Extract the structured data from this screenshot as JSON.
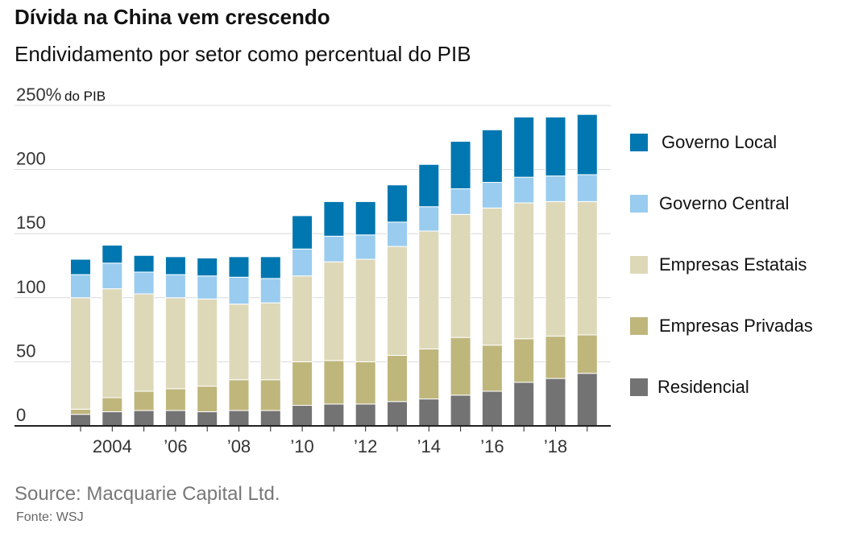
{
  "header": {
    "title": "Dívida na China vem crescendo",
    "subtitle": "Endividamento por setor como percentual do PIB"
  },
  "footer": {
    "source": "Source: Macquarie Capital Ltd.",
    "credit": "Fonte: WSJ"
  },
  "colors": {
    "governo_local": "#0077b0",
    "governo_central": "#99ccef",
    "empresas_estatais": "#ddd8b8",
    "empresas_privadas": "#bfb67c",
    "residencial": "#737373",
    "grid": "#d9d9d9",
    "axis": "#222222"
  },
  "chart_data": {
    "type": "bar",
    "stacked": true,
    "title": "Dívida na China vem crescendo",
    "subtitle": "Endividamento por setor como percentual do PIB",
    "y_unit_label": "do PIB",
    "ylim": [
      0,
      250
    ],
    "y_ticks": [
      "250%",
      "200",
      "150",
      "100",
      "50",
      "0"
    ],
    "x_tick_labels": [
      "2004",
      "’06",
      "’08",
      "’10",
      "’12",
      "’14",
      "’16",
      "’18"
    ],
    "grid": true,
    "legend_position": "right",
    "categories": [
      "2003",
      "2004",
      "2005",
      "2006",
      "2007",
      "2008",
      "2009",
      "2010",
      "2011",
      "2012",
      "2013",
      "2014",
      "2015",
      "2016",
      "2017",
      "2018",
      "2019"
    ],
    "series": [
      {
        "name": "Residencial",
        "values": [
          9,
          11,
          12,
          12,
          11,
          12,
          12,
          16,
          17,
          17,
          19,
          21,
          24,
          27,
          34,
          37,
          41
        ]
      },
      {
        "name": "Empresas Privadas",
        "values": [
          4,
          11,
          15,
          17,
          20,
          24,
          24,
          34,
          34,
          33,
          36,
          39,
          45,
          36,
          34,
          33,
          30
        ]
      },
      {
        "name": "Empresas Estatais",
        "values": [
          87,
          85,
          76,
          71,
          68,
          59,
          60,
          67,
          77,
          80,
          85,
          92,
          96,
          107,
          106,
          105,
          104
        ]
      },
      {
        "name": "Governo Central",
        "values": [
          18,
          20,
          17,
          18,
          18,
          21,
          19,
          21,
          20,
          19,
          19,
          19,
          20,
          20,
          20,
          20,
          21
        ]
      },
      {
        "name": "Governo Local",
        "values": [
          12,
          14,
          13,
          14,
          14,
          16,
          17,
          26,
          27,
          26,
          29,
          33,
          37,
          41,
          47,
          46,
          47
        ]
      }
    ]
  },
  "legend": [
    {
      "key": "governo_local",
      "label": "Governo Local"
    },
    {
      "key": "governo_central",
      "label": "Governo Central"
    },
    {
      "key": "empresas_estatais",
      "label": "Empresas Estatais"
    },
    {
      "key": "empresas_privadas",
      "label": "Empresas Privadas"
    },
    {
      "key": "residencial",
      "label": "Residencial"
    }
  ]
}
